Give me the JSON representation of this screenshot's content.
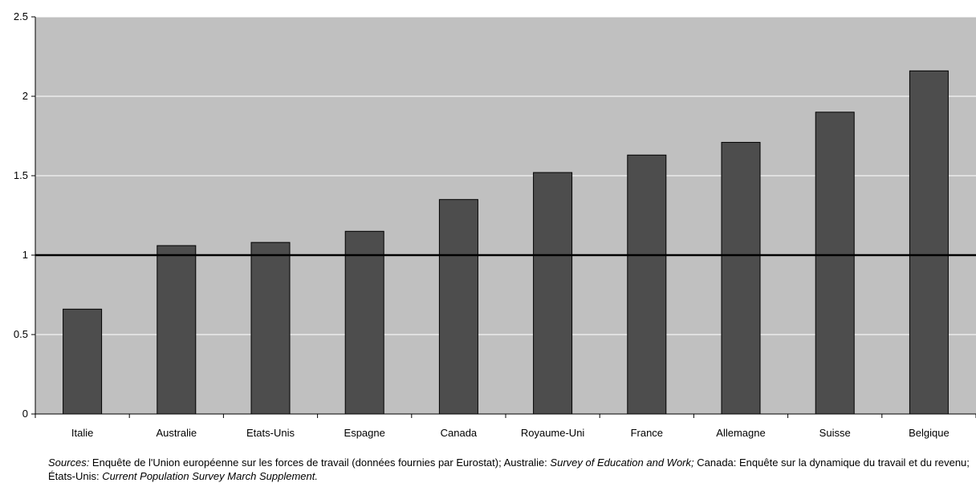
{
  "chart_data": {
    "type": "bar",
    "categories": [
      "Italie",
      "Australie",
      "Etats-Unis",
      "Espagne",
      "Canada",
      "Royaume-Uni",
      "France",
      "Allemagne",
      "Suisse",
      "Belgique"
    ],
    "values": [
      0.66,
      1.06,
      1.08,
      1.15,
      1.35,
      1.52,
      1.63,
      1.71,
      1.9,
      2.16
    ],
    "title": "",
    "xlabel": "",
    "ylabel": "",
    "ylim": [
      0,
      2.5
    ],
    "yticks": [
      "0",
      "0.5",
      "1",
      "1.5",
      "2",
      "2.5"
    ],
    "reference_line": 1,
    "grid": true,
    "colors": {
      "plot_bg": "#c0c0c0",
      "bar": "#4d4d4d",
      "grid": "#ffffff",
      "reference": "#000000"
    }
  },
  "sources": {
    "label": "Sources:",
    "t1": " Enquête de l'Union européenne sur les forces de travail (données fournies par Eurostat); Australie: ",
    "i1": "Survey of Education and Work;",
    "t2": " Canada: Enquête sur la dynamique du travail et du revenu; États-Unis: ",
    "i2": "Current Population Survey March Supplement."
  }
}
